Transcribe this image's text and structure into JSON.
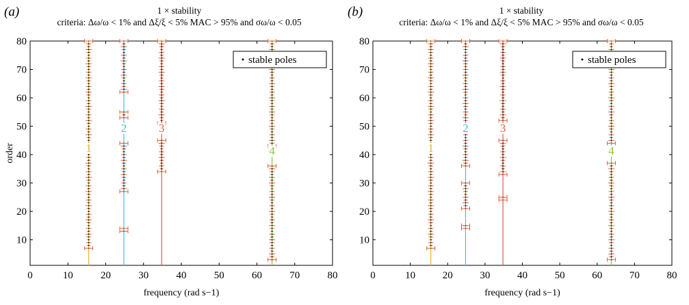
{
  "figure": {
    "panels": [
      {
        "panel_label": "(a)",
        "title_line1": "1 × stability"
      },
      {
        "panel_label": "(b)",
        "title_line1": "1 × stability"
      }
    ],
    "colors": {
      "mode1": "#e8b230",
      "mode2": "#4db8e0",
      "mode3": "#e0603a",
      "mode4": "#8fbf3a",
      "stable_marker": "#000000",
      "errorbar": "#e0603a"
    }
  },
  "chart_data": [
    {
      "type": "scatter",
      "title": "1 × stability",
      "subtitle": "criteria: Δω/ω < 1% and Δξ/ξ < 5% MAC > 95% and σω/ω < 0.05",
      "xlabel": "frequency (rad s−1)",
      "ylabel": "order",
      "xlim": [
        0,
        80
      ],
      "ylim": [
        1,
        80
      ],
      "xticks": [
        0,
        10,
        20,
        30,
        40,
        50,
        60,
        70,
        80
      ],
      "yticks": [
        10,
        20,
        30,
        40,
        50,
        60,
        70,
        80
      ],
      "legend": {
        "entries": [
          "stable poles"
        ],
        "position": "top-right"
      },
      "modes": [
        {
          "label": "1",
          "frequency": 15.5,
          "label_order": 41,
          "segments": [
            [
              7,
              80
            ]
          ]
        },
        {
          "label": "2",
          "frequency": 24.8,
          "label_order": 48,
          "segments": [
            [
              13,
              14
            ],
            [
              27,
              44
            ],
            [
              53,
              55
            ],
            [
              62,
              80
            ]
          ]
        },
        {
          "label": "3",
          "frequency": 34.8,
          "label_order": 48,
          "segments": [
            [
              34,
              45
            ],
            [
              51,
              80
            ]
          ]
        },
        {
          "label": "4",
          "frequency": 64.0,
          "label_order": 40,
          "segments": [
            [
              3,
              36
            ],
            [
              43,
              80
            ]
          ]
        }
      ]
    },
    {
      "type": "scatter",
      "title": "1 × stability",
      "subtitle": "criteria: Δω/ω < 1% and Δξ/ξ < 5% MAC > 95% and σω/ω < 0.05",
      "xlabel": "frequency (rad s−1)",
      "ylabel": "order",
      "xlim": [
        0,
        80
      ],
      "ylim": [
        1,
        80
      ],
      "xticks": [
        0,
        10,
        20,
        30,
        40,
        50,
        60,
        70,
        80
      ],
      "yticks": [
        10,
        20,
        30,
        40,
        50,
        60,
        70,
        80
      ],
      "legend": {
        "entries": [
          "stable poles"
        ],
        "position": "top-right"
      },
      "modes": [
        {
          "label": "1",
          "frequency": 15.5,
          "label_order": 41,
          "segments": [
            [
              7,
              80
            ]
          ]
        },
        {
          "label": "2",
          "frequency": 24.8,
          "label_order": 48,
          "segments": [
            [
              14,
              15
            ],
            [
              21,
              30
            ],
            [
              36,
              80
            ]
          ]
        },
        {
          "label": "3",
          "frequency": 34.8,
          "label_order": 48,
          "segments": [
            [
              24,
              25
            ],
            [
              33,
              45
            ],
            [
              52,
              80
            ]
          ]
        },
        {
          "label": "4",
          "frequency": 63.8,
          "label_order": 40,
          "segments": [
            [
              3,
              37
            ],
            [
              44,
              80
            ]
          ]
        }
      ]
    }
  ]
}
